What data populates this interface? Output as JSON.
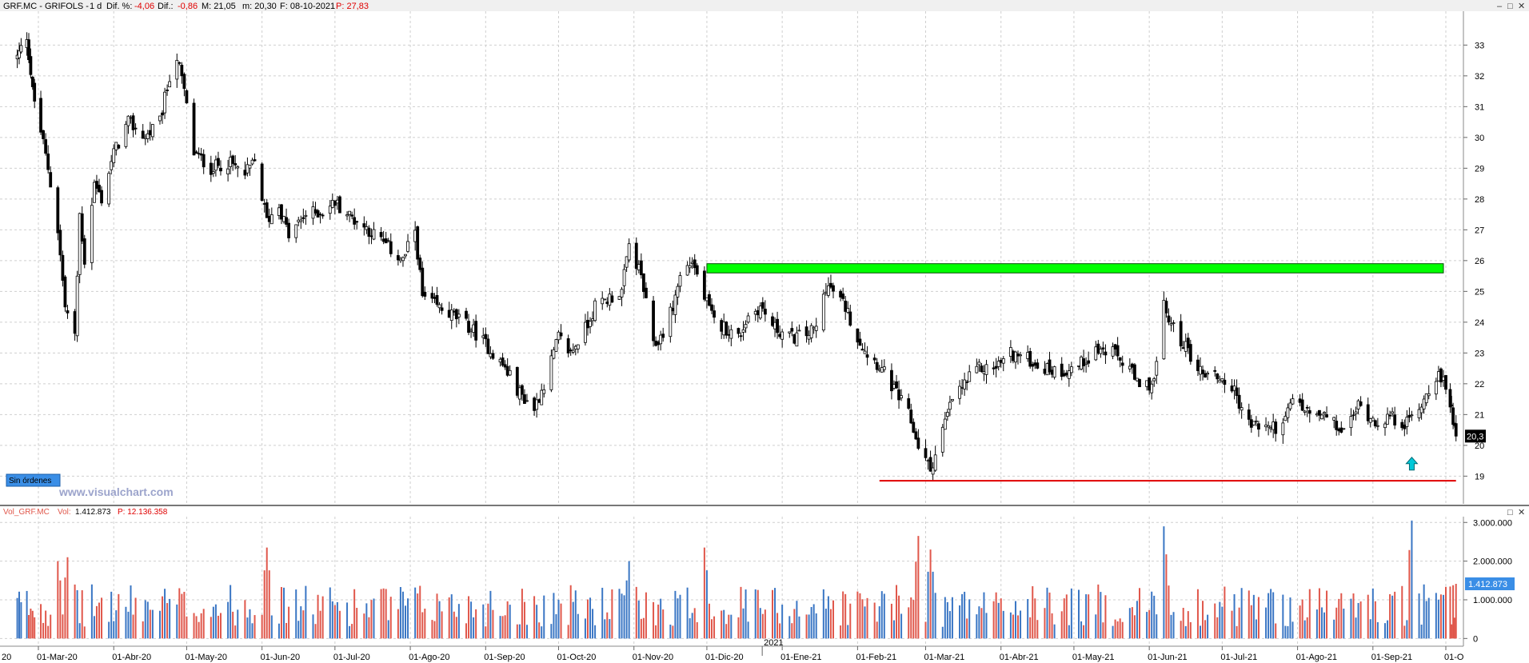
{
  "price_header": {
    "symbol": "GRF.MC - GRIFOLS -",
    "timeframe": "1 d",
    "dif_pct_label": "Dif. %:",
    "dif_pct_value": "-4,06",
    "dif_label": "Dif.:",
    "dif_value": "-0,86",
    "max_label": "M: 21,05",
    "min_label": "m: 20,30",
    "date_label": "F: 08-10-2021",
    "price_label": "P: 27,83"
  },
  "volume_header": {
    "name": "Vol_GRF.MC",
    "vol_label": "Vol:",
    "vol_value": "1.412.873",
    "p_label": "P: 12.136.358"
  },
  "orders_badge": "Sin órdenes",
  "watermark": "www.visualchart.com",
  "window_controls": [
    "–",
    "□",
    "✕"
  ],
  "colors": {
    "up_volume": "#3a76c4",
    "down_volume": "#e0574b",
    "resistance_zone": "#00ff00",
    "support_line": "#e00000",
    "arrow": "#00c8d8",
    "price_tag_bg": "#000000",
    "volume_tag_bg": "#3a8ee6"
  },
  "chart_data": [
    {
      "type": "candlestick",
      "symbol": "GRF.MC",
      "title": "GRF.MC - GRIFOLS - 1 d",
      "x_tick_labels": [
        "20",
        "01-Mar-20",
        "01-Abr-20",
        "01-May-20",
        "01-Jun-20",
        "01-Jul-20",
        "01-Ago-20",
        "01-Sep-20",
        "01-Oct-20",
        "01-Nov-20",
        "01-Dic-20",
        "01-Ene-21",
        "01-Feb-21",
        "01-Mar-21",
        "01-Abr-21",
        "01-May-21",
        "01-Jun-21",
        "01-Jul-21",
        "01-Ago-21",
        "01-Sep-21",
        "01-O"
      ],
      "year_marker": "2021",
      "y_ticks": [
        19,
        20,
        21,
        22,
        23,
        24,
        25,
        26,
        27,
        28,
        29,
        30,
        31,
        32,
        33
      ],
      "ylim": [
        18.1,
        34.1
      ],
      "last_price_label": "20,3",
      "last_price": 20.3,
      "grid": true,
      "close_path": [
        [
          "2020-02-19",
          32.6
        ],
        [
          "2020-02-24",
          33.3
        ],
        [
          "2020-02-27",
          31.5
        ],
        [
          "2020-03-02",
          30.2
        ],
        [
          "2020-03-05",
          29.0
        ],
        [
          "2020-03-09",
          27.0
        ],
        [
          "2020-03-12",
          24.5
        ],
        [
          "2020-03-16",
          23.5
        ],
        [
          "2020-03-18",
          27.5
        ],
        [
          "2020-03-20",
          26.0
        ],
        [
          "2020-03-24",
          28.5
        ],
        [
          "2020-03-27",
          28.0
        ],
        [
          "2020-04-01",
          29.5
        ],
        [
          "2020-04-07",
          30.5
        ],
        [
          "2020-04-14",
          30.0
        ],
        [
          "2020-04-20",
          30.5
        ],
        [
          "2020-04-24",
          32.0
        ],
        [
          "2020-04-27",
          32.6
        ],
        [
          "2020-04-30",
          31.5
        ],
        [
          "2020-05-04",
          29.5
        ],
        [
          "2020-05-11",
          29.0
        ],
        [
          "2020-05-18",
          29.2
        ],
        [
          "2020-05-25",
          28.8
        ],
        [
          "2020-05-29",
          29.2
        ],
        [
          "2020-06-03",
          27.3
        ],
        [
          "2020-06-08",
          27.8
        ],
        [
          "2020-06-12",
          26.8
        ],
        [
          "2020-06-19",
          27.5
        ],
        [
          "2020-06-26",
          27.6
        ],
        [
          "2020-07-01",
          27.9
        ],
        [
          "2020-07-08",
          27.4
        ],
        [
          "2020-07-15",
          27.0
        ],
        [
          "2020-07-22",
          26.5
        ],
        [
          "2020-07-29",
          26.0
        ],
        [
          "2020-08-03",
          27.0
        ],
        [
          "2020-08-06",
          24.8
        ],
        [
          "2020-08-12",
          24.5
        ],
        [
          "2020-08-19",
          24.2
        ],
        [
          "2020-08-26",
          23.8
        ],
        [
          "2020-09-02",
          23.2
        ],
        [
          "2020-09-09",
          22.5
        ],
        [
          "2020-09-15",
          21.7
        ],
        [
          "2020-09-21",
          21.2
        ],
        [
          "2020-09-25",
          22.0
        ],
        [
          "2020-10-01",
          23.5
        ],
        [
          "2020-10-06",
          23.0
        ],
        [
          "2020-10-12",
          23.8
        ],
        [
          "2020-10-16",
          24.5
        ],
        [
          "2020-10-22",
          24.8
        ],
        [
          "2020-10-27",
          25.0
        ],
        [
          "2020-10-30",
          26.5
        ],
        [
          "2020-11-04",
          25.5
        ],
        [
          "2020-11-09",
          23.2
        ],
        [
          "2020-11-12",
          23.5
        ],
        [
          "2020-11-17",
          24.5
        ],
        [
          "2020-11-20",
          25.5
        ],
        [
          "2020-11-25",
          26.0
        ],
        [
          "2020-11-30",
          24.8
        ],
        [
          "2020-12-04",
          24.0
        ],
        [
          "2020-12-09",
          23.8
        ],
        [
          "2020-12-14",
          23.5
        ],
        [
          "2020-12-18",
          24.2
        ],
        [
          "2020-12-23",
          24.5
        ],
        [
          "2020-12-29",
          23.8
        ],
        [
          "2021-01-05",
          23.5
        ],
        [
          "2021-01-11",
          23.6
        ],
        [
          "2021-01-15",
          23.8
        ],
        [
          "2021-01-19",
          25.2
        ],
        [
          "2021-01-22",
          25.0
        ],
        [
          "2021-01-27",
          24.5
        ],
        [
          "2021-02-01",
          23.5
        ],
        [
          "2021-02-05",
          23.0
        ],
        [
          "2021-02-10",
          22.6
        ],
        [
          "2021-02-16",
          21.8
        ],
        [
          "2021-02-22",
          21.0
        ],
        [
          "2021-02-26",
          20.0
        ],
        [
          "2021-03-03",
          19.2
        ],
        [
          "2021-03-08",
          20.5
        ],
        [
          "2021-03-12",
          21.5
        ],
        [
          "2021-03-17",
          22.0
        ],
        [
          "2021-03-23",
          22.5
        ],
        [
          "2021-03-29",
          22.5
        ],
        [
          "2021-04-05",
          23.0
        ],
        [
          "2021-04-12",
          22.8
        ],
        [
          "2021-04-19",
          22.5
        ],
        [
          "2021-04-26",
          22.4
        ],
        [
          "2021-05-03",
          22.6
        ],
        [
          "2021-05-10",
          23.1
        ],
        [
          "2021-05-17",
          23.0
        ],
        [
          "2021-05-24",
          22.5
        ],
        [
          "2021-05-28",
          21.8
        ],
        [
          "2021-06-03",
          22.1
        ],
        [
          "2021-06-07",
          24.5
        ],
        [
          "2021-06-10",
          23.9
        ],
        [
          "2021-06-16",
          23.2
        ],
        [
          "2021-06-22",
          22.4
        ],
        [
          "2021-06-28",
          22.3
        ],
        [
          "2021-07-05",
          21.9
        ],
        [
          "2021-07-12",
          20.7
        ],
        [
          "2021-07-19",
          20.6
        ],
        [
          "2021-07-26",
          20.6
        ],
        [
          "2021-07-30",
          21.5
        ],
        [
          "2021-08-06",
          21.0
        ],
        [
          "2021-08-13",
          20.9
        ],
        [
          "2021-08-20",
          20.4
        ],
        [
          "2021-08-26",
          21.3
        ],
        [
          "2021-09-02",
          20.8
        ],
        [
          "2021-09-08",
          20.9
        ],
        [
          "2021-09-15",
          20.7
        ],
        [
          "2021-09-22",
          21.5
        ],
        [
          "2021-09-27",
          22.3
        ],
        [
          "2021-10-01",
          21.9
        ],
        [
          "2021-10-05",
          21.2
        ],
        [
          "2021-10-08",
          20.3
        ]
      ],
      "annotations": [
        {
          "type": "horizontal_band",
          "color": "green",
          "from": "2020-12-01",
          "to": "2021-09-30",
          "y_low": 25.6,
          "y_high": 25.9
        },
        {
          "type": "horizontal_line",
          "color": "red",
          "from": "2021-02-10",
          "to": "2021-10-08",
          "y": 18.85
        },
        {
          "type": "arrow_up",
          "color": "cyan",
          "date": "2021-09-17",
          "y": 19.3
        }
      ]
    },
    {
      "type": "bar",
      "series_name": "Vol_GRF.MC",
      "y_ticks": [
        0,
        1000000,
        2000000,
        3000000
      ],
      "y_tick_labels": [
        "0",
        "1.000.000",
        "2.000.000",
        "3.000.000"
      ],
      "ylim": [
        -200000,
        3150000
      ],
      "last_value": 1412873,
      "last_value_label": "1.412.873",
      "notable_peaks": [
        {
          "date": "2020-03-09",
          "value": 2000000
        },
        {
          "date": "2020-03-13",
          "value": 2100000
        },
        {
          "date": "2020-06-03",
          "value": 2350000
        },
        {
          "date": "2020-10-30",
          "value": 2000000
        },
        {
          "date": "2020-11-30",
          "value": 2350000
        },
        {
          "date": "2021-02-26",
          "value": 2650000
        },
        {
          "date": "2021-03-03",
          "value": 2300000
        },
        {
          "date": "2021-06-07",
          "value": 2900000
        },
        {
          "date": "2021-09-17",
          "value": 3050000
        }
      ],
      "typical_range": [
        300000,
        1400000
      ]
    }
  ]
}
